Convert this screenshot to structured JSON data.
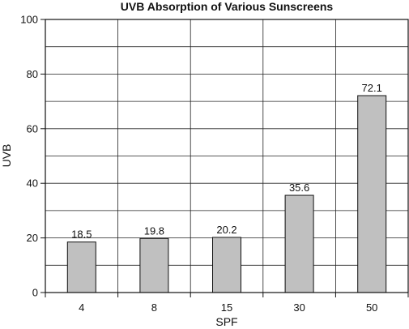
{
  "chart_data": {
    "type": "bar",
    "title": "UVB Absorption of Various Sunscreens",
    "xlabel": "SPF",
    "ylabel": "UVB",
    "categories": [
      "4",
      "8",
      "15",
      "30",
      "50"
    ],
    "values": [
      18.5,
      19.8,
      20.2,
      35.6,
      72.1
    ],
    "data_labels": [
      "18.5",
      "19.8",
      "20.2",
      "35.6",
      "72.1"
    ],
    "ylim": [
      0,
      100
    ],
    "yticks": [
      "0",
      "20",
      "40",
      "60",
      "80",
      "100"
    ],
    "grid": true,
    "bar_color": "#c0c0c0"
  }
}
